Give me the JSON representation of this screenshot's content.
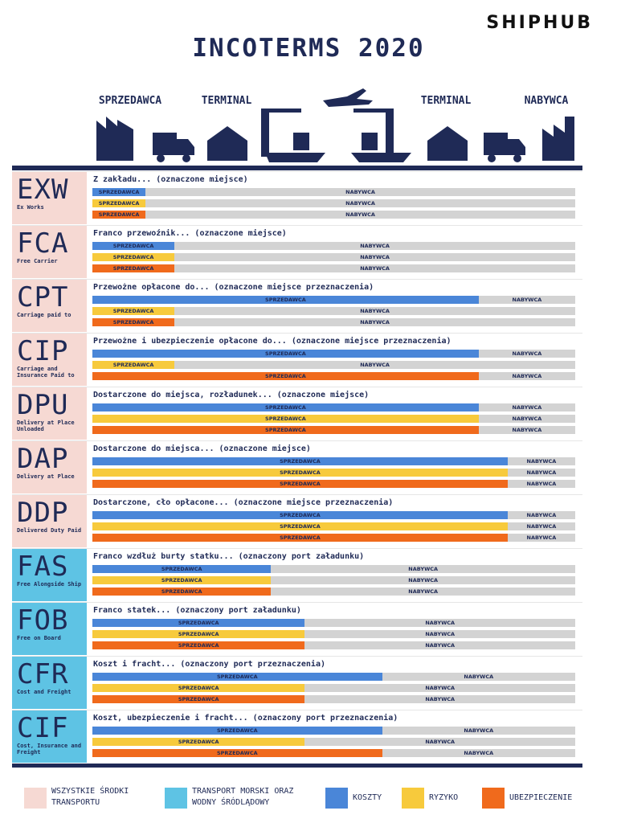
{
  "header": {
    "logo": "SHIPHUB",
    "title": "INCOTERMS 2020",
    "stages": [
      "SPRZEDAWCA",
      "TERMINAL",
      "TERMINAL",
      "NABYWCA"
    ]
  },
  "seller_label": "SPRZEDAWCA",
  "buyer_label": "NABYWCA",
  "rows": [
    {
      "code": "EXW",
      "name": "Ex Works",
      "description": "Z zakładu... (oznaczone miejsce)",
      "group": 0,
      "costs": 11,
      "risk": 11,
      "insurance": 11
    },
    {
      "code": "FCA",
      "name": "Free Carrier",
      "description": "Franco przewoźnik... (oznaczone miejsce)",
      "group": 0,
      "costs": 17,
      "risk": 17,
      "insurance": 17
    },
    {
      "code": "CPT",
      "name": "Carriage paid to",
      "description": "Przewożne opłacone do... (oznaczone miejsce przeznaczenia)",
      "group": 0,
      "costs": 80,
      "risk": 17,
      "insurance": 17
    },
    {
      "code": "CIP",
      "name": "Carriage and Insurance Paid to",
      "description": "Przewożne i ubezpieczenie opłacone do... (oznaczone miejsce przeznaczenia)",
      "group": 0,
      "costs": 80,
      "risk": 17,
      "insurance": 80
    },
    {
      "code": "DPU",
      "name": "Delivery at Place Unloaded",
      "description": "Dostarczone do miejsca, rozładunek... (oznaczone miejsce)",
      "group": 0,
      "costs": 80,
      "risk": 80,
      "insurance": 80
    },
    {
      "code": "DAP",
      "name": "Delivery at Place",
      "description": "Dostarczone do miejsca... (oznaczone miejsce)",
      "group": 0,
      "costs": 86,
      "risk": 86,
      "insurance": 86
    },
    {
      "code": "DDP",
      "name": "Delivered Duty Paid",
      "description": "Dostarczone, cło opłacone... (oznaczone miejsce przeznaczenia)",
      "group": 0,
      "costs": 86,
      "risk": 86,
      "insurance": 86
    },
    {
      "code": "FAS",
      "name": "Free Alongside Ship",
      "description": "Franco wzdłuż burty statku... (oznaczony port załadunku)",
      "group": 1,
      "costs": 37,
      "risk": 37,
      "insurance": 37
    },
    {
      "code": "FOB",
      "name": "Free on Board",
      "description": "Franco statek... (oznaczony port załadunku)",
      "group": 1,
      "costs": 44,
      "risk": 44,
      "insurance": 44
    },
    {
      "code": "CFR",
      "name": "Cost and Freight",
      "description": "Koszt i fracht... (oznaczony port przeznaczenia)",
      "group": 1,
      "costs": 60,
      "risk": 44,
      "insurance": 44
    },
    {
      "code": "CIF",
      "name": "Cost, Insurance and Freight",
      "description": "Koszt, ubezpieczenie i fracht... (oznaczony port przeznaczenia)",
      "group": 1,
      "costs": 60,
      "risk": 44,
      "insurance": 60
    }
  ],
  "legend": [
    {
      "label": "WSZYSTKIE ŚRODKI TRANSPORTU",
      "color": "#f6d9d3"
    },
    {
      "label": "TRANSPORT MORSKI ORAZ WODNY ŚRÓDLĄDOWY",
      "color": "#5ec3e4"
    },
    {
      "label": "KOSZTY",
      "color": "#4a86d8"
    },
    {
      "label": "RYZYKO",
      "color": "#f7ca3c"
    },
    {
      "label": "UBEZPIECZENIE",
      "color": "#f06a1c"
    }
  ],
  "buyer_color": "#d3d3d3"
}
